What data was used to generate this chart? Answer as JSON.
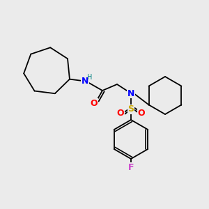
{
  "background_color": "#ebebeb",
  "bond_color": "#000000",
  "atom_colors": {
    "N": "#0000ff",
    "O": "#ff0000",
    "S": "#ccaa00",
    "F": "#cc44cc",
    "H": "#008080"
  },
  "font_size": 8,
  "figsize": [
    3.0,
    3.0
  ],
  "dpi": 100,
  "lw": 1.3
}
